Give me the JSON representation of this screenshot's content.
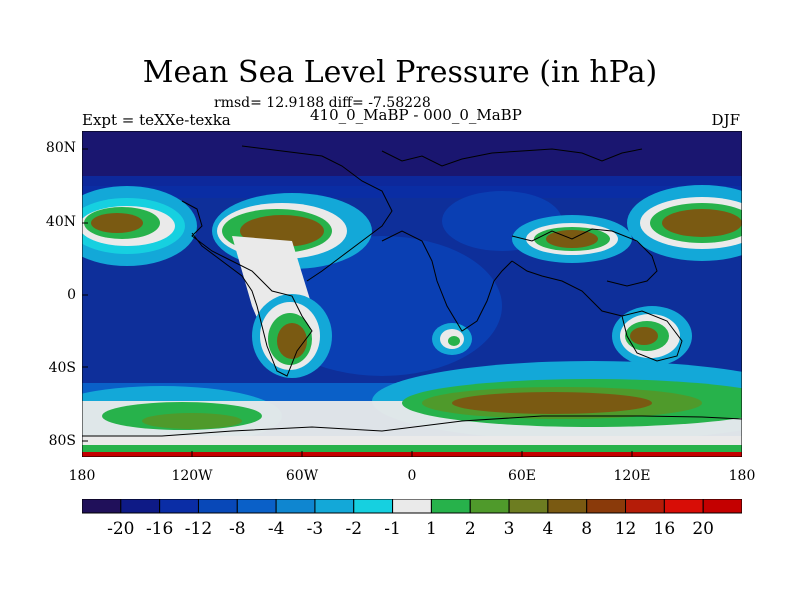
{
  "title": "Mean Sea Level Pressure (in hPa)",
  "stats": "rmsd= 12.9188 diff= -7.58228",
  "left_label": "Expt = teXXe-texka",
  "center_label": "410_0_MaBP - 000_0_MaBP",
  "right_label": "DJF",
  "y_ticks": [
    "80N",
    "40N",
    "0",
    "40S",
    "80S"
  ],
  "x_ticks": [
    "180",
    "120W",
    "60W",
    "0",
    "60E",
    "120E",
    "180"
  ],
  "colorbar": {
    "labels": [
      "-20",
      "-16",
      "-12",
      "-8",
      "-4",
      "-3",
      "-2",
      "-1",
      "1",
      "2",
      "3",
      "4",
      "8",
      "12",
      "16",
      "20"
    ],
    "colors": [
      "#20105a",
      "#0e1a86",
      "#0a2da6",
      "#0848b8",
      "#0a60c8",
      "#0f86d0",
      "#13a8d8",
      "#16d0e0",
      "#eaeaea",
      "#27b24b",
      "#4f9a2b",
      "#6d7d21",
      "#7a5a12",
      "#8a3a0a",
      "#b51c08",
      "#d80d06",
      "#c40000"
    ]
  }
}
